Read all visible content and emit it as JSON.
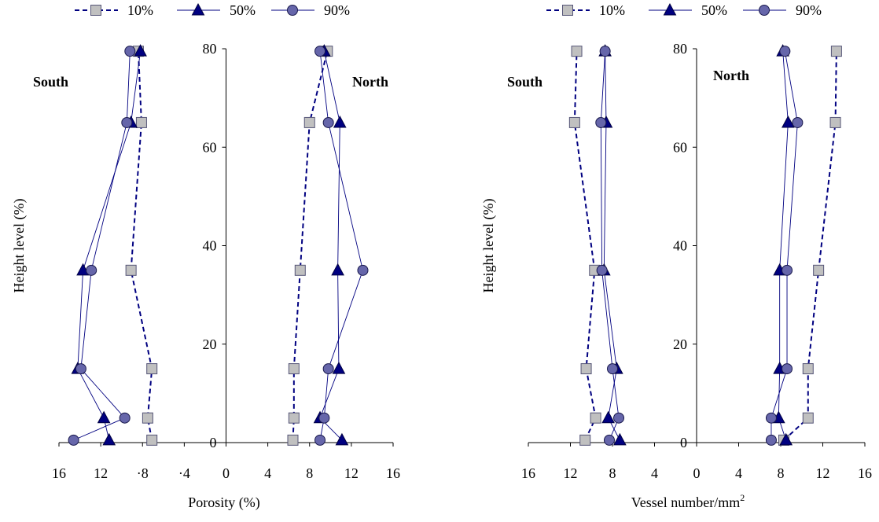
{
  "legend": [
    {
      "label": "10%",
      "marker": "square"
    },
    {
      "label": "50%",
      "marker": "triangle"
    },
    {
      "label": "90%",
      "marker": "circle"
    }
  ],
  "colors": {
    "marker_fill_square": "#c0c0c0",
    "marker_fill_triangle": "#000080",
    "marker_fill_circle": "#6666aa",
    "line": "#000080",
    "axis": "#000000"
  },
  "chart_data": [
    {
      "type": "line",
      "xlabel": "Porosity (%)",
      "ylabel": "Height level (%)",
      "side_labels": {
        "left": "South",
        "right": "North"
      },
      "ylim": [
        0,
        80
      ],
      "yticks": [
        0,
        20,
        40,
        60,
        80
      ],
      "xlim": [
        -16,
        16
      ],
      "xtick_values": [
        -16,
        -12,
        -8,
        -4,
        0,
        4,
        8,
        12,
        16
      ],
      "xtick_labels": [
        "16",
        "12",
        "·8",
        "·4",
        "0",
        "4",
        "8",
        "12",
        "16"
      ],
      "series": [
        {
          "name": "10%",
          "side": "South",
          "x": [
            -7.1,
            -7.5,
            -7.1,
            -9.1,
            -8.1,
            -8.4
          ],
          "y": [
            0.5,
            5,
            15,
            35,
            65,
            79.5
          ]
        },
        {
          "name": "50%",
          "side": "South",
          "x": [
            -11.2,
            -11.7,
            -14.2,
            -13.7,
            -9.1,
            -8.2
          ],
          "y": [
            0.5,
            5,
            15,
            35,
            65,
            79.5
          ]
        },
        {
          "name": "90%",
          "side": "South",
          "x": [
            -14.6,
            -9.7,
            -13.9,
            -12.9,
            -9.5,
            -9.2
          ],
          "y": [
            0.5,
            5,
            15,
            35,
            65,
            79.5
          ]
        },
        {
          "name": "10%",
          "side": "North",
          "x": [
            6.4,
            6.5,
            6.5,
            7.1,
            8.0,
            9.7
          ],
          "y": [
            0.5,
            5,
            15,
            35,
            65,
            79.5
          ]
        },
        {
          "name": "50%",
          "side": "North",
          "x": [
            11.1,
            9.0,
            10.8,
            10.7,
            10.9,
            9.4
          ],
          "y": [
            0.5,
            5,
            15,
            35,
            65,
            79.5
          ]
        },
        {
          "name": "90%",
          "side": "North",
          "x": [
            9.0,
            9.4,
            9.8,
            13.1,
            9.8,
            9.0
          ],
          "y": [
            0.5,
            5,
            15,
            35,
            65,
            79.5
          ]
        }
      ]
    },
    {
      "type": "line",
      "xlabel": "Vessel number/mm",
      "xlabel_sup": "2",
      "ylabel": "Height level (%)",
      "side_labels": {
        "left": "South",
        "right": "North"
      },
      "ylim": [
        0,
        80
      ],
      "yticks": [
        0,
        20,
        40,
        60,
        80
      ],
      "xlim": [
        -16,
        16
      ],
      "xtick_values": [
        -16,
        -12,
        -8,
        -4,
        0,
        4,
        8,
        12,
        16
      ],
      "xtick_labels": [
        "16",
        "12",
        "8",
        "4",
        "0",
        "4",
        "8",
        "12",
        "16"
      ],
      "series": [
        {
          "name": "10%",
          "side": "South",
          "x": [
            -10.6,
            -9.6,
            -10.5,
            -9.7,
            -11.6,
            -11.4
          ],
          "y": [
            0.5,
            5,
            15,
            35,
            65,
            79.5
          ]
        },
        {
          "name": "50%",
          "side": "South",
          "x": [
            -7.3,
            -8.4,
            -7.6,
            -8.8,
            -8.6,
            -8.7
          ],
          "y": [
            0.5,
            5,
            15,
            35,
            65,
            79.5
          ]
        },
        {
          "name": "90%",
          "side": "South",
          "x": [
            -8.3,
            -7.4,
            -8.0,
            -9.0,
            -9.1,
            -8.7
          ],
          "y": [
            0.5,
            5,
            15,
            35,
            65,
            79.5
          ]
        },
        {
          "name": "10%",
          "side": "North",
          "x": [
            8.3,
            10.6,
            10.6,
            11.6,
            13.2,
            13.3
          ],
          "y": [
            0.5,
            5,
            15,
            35,
            65,
            79.5
          ]
        },
        {
          "name": "50%",
          "side": "North",
          "x": [
            8.5,
            7.8,
            7.9,
            7.9,
            8.7,
            8.2
          ],
          "y": [
            0.5,
            5,
            15,
            35,
            65,
            79.5
          ]
        },
        {
          "name": "90%",
          "side": "North",
          "x": [
            7.1,
            7.1,
            8.6,
            8.6,
            9.6,
            8.4
          ],
          "y": [
            0.5,
            5,
            15,
            35,
            65,
            79.5
          ]
        }
      ]
    }
  ]
}
